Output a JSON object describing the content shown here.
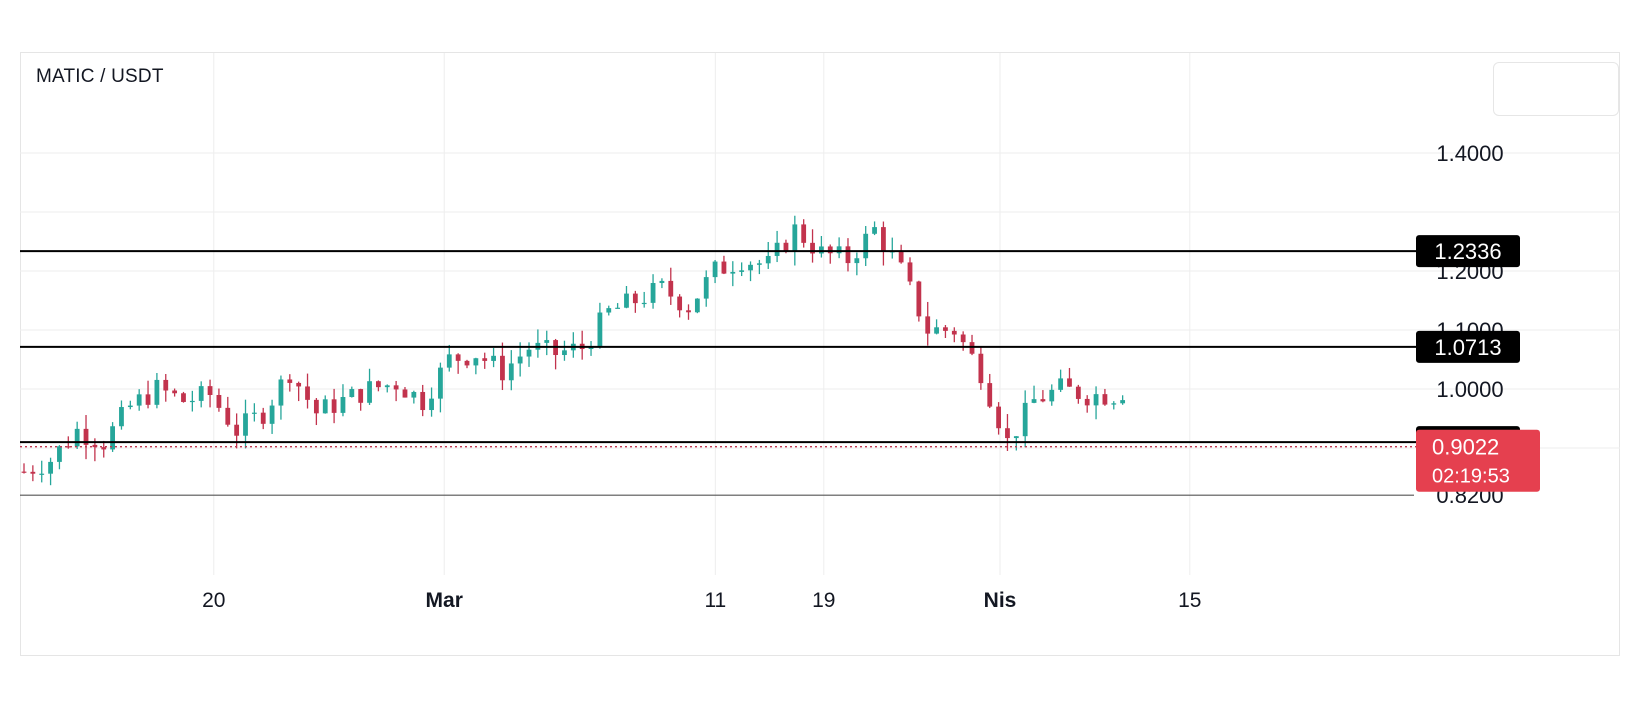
{
  "symbol": "MATIC / USDT",
  "colors": {
    "up": "#26a69a",
    "down": "#c2334d",
    "grid": "#eeeeee",
    "level_line": "#000000",
    "level_badge_bg": "#000000",
    "price_badge_bg": "#e5404f",
    "text": "#131722"
  },
  "chart_data": {
    "type": "candlestick",
    "ylim": [
      0.77,
      1.57
    ],
    "y_ticks": [
      "1.4000",
      "1.2000",
      "1.1000",
      "1.0000",
      "0.8200"
    ],
    "x_ticks": [
      {
        "label": "20",
        "bold": false,
        "index": 14
      },
      {
        "label": "Mar",
        "bold": true,
        "index": 31
      },
      {
        "label": "11",
        "bold": false,
        "index": 51
      },
      {
        "label": "19",
        "bold": false,
        "index": 59
      },
      {
        "label": "Nis",
        "bold": true,
        "index": 72
      },
      {
        "label": "15",
        "bold": false,
        "index": 86
      }
    ],
    "levels": [
      {
        "label": "1.2336",
        "value": 1.2336
      },
      {
        "label": "1.0713",
        "value": 1.0713
      },
      {
        "label": "0.9100",
        "value": 0.91
      }
    ],
    "thin_line": 0.82,
    "current_price": {
      "label": "0.9022",
      "value": 0.9022,
      "countdown": "02:19:53"
    },
    "close_path": [
      0.86,
      0.88,
      0.93,
      0.91,
      0.97,
      1.0,
      0.98,
      0.99,
      0.93,
      0.96,
      1.03,
      0.96,
      0.98,
      1.0,
      1.01,
      0.98,
      1.05,
      1.06,
      1.03,
      1.07,
      1.06,
      1.07,
      1.13,
      1.15,
      1.17,
      1.14,
      1.2,
      1.22,
      1.21,
      1.27,
      1.23,
      1.22,
      1.27,
      1.2,
      1.1,
      1.1,
      1.03,
      0.91,
      0.98,
      1.0,
      0.99,
      0.99,
      1.01,
      1.05,
      1.06,
      1.03,
      1.0,
      1.0,
      1.0,
      0.92,
      0.89,
      0.9,
      0.9
    ],
    "candles_per_segment": 3
  }
}
